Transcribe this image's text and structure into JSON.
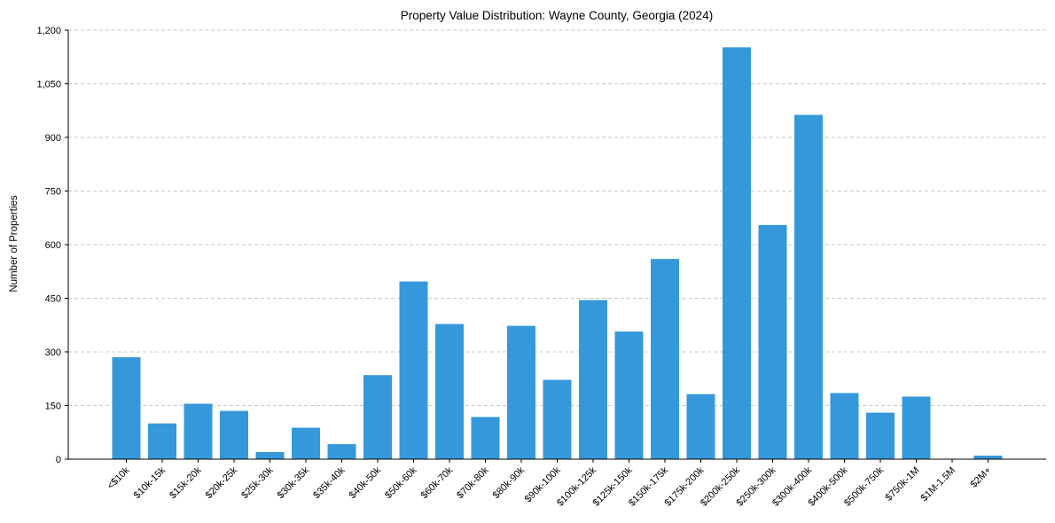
{
  "chart_data": {
    "type": "bar",
    "title": "Property Value Distribution: Wayne County, Georgia (2024)",
    "xlabel": "",
    "ylabel": "Number of Properties",
    "ylim": [
      0,
      1200
    ],
    "yticks": [
      0,
      150,
      300,
      450,
      600,
      750,
      900,
      1050,
      1200
    ],
    "ytick_labels": [
      "0",
      "150",
      "300",
      "450",
      "600",
      "750",
      "900",
      "1,050",
      "1,200"
    ],
    "categories": [
      "<$10k",
      "$10k-15k",
      "$15k-20k",
      "$20k-25k",
      "$25k-30k",
      "$30k-35k",
      "$35k-40k",
      "$40k-50k",
      "$50k-60k",
      "$60k-70k",
      "$70k-80k",
      "$80k-90k",
      "$90k-100k",
      "$100k-125k",
      "$125k-150k",
      "$150k-175k",
      "$175k-200k",
      "$200k-250k",
      "$250k-300k",
      "$300k-400k",
      "$400k-500k",
      "$500k-750k",
      "$750k-1M",
      "$1M-1.5M",
      "$2M+"
    ],
    "values": [
      285,
      100,
      155,
      135,
      20,
      88,
      42,
      235,
      497,
      378,
      118,
      373,
      222,
      445,
      357,
      560,
      182,
      1152,
      655,
      963,
      185,
      130,
      175,
      0,
      10
    ],
    "color": "#3498db",
    "grid": "y-dashed"
  }
}
